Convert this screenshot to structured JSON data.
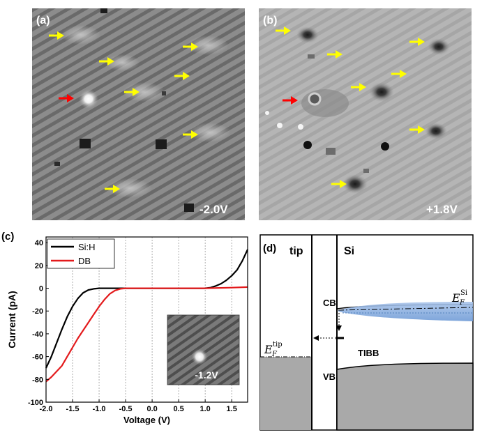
{
  "figure": {
    "panel_a": {
      "label": "(a)",
      "bias": "-2.0V"
    },
    "panel_b": {
      "label": "(b)",
      "bias": "+1.8V"
    },
    "panel_c": {
      "label": "(c)",
      "inset_bias": "-1.2V"
    },
    "panel_d": {
      "label": "(d)",
      "tip_label": "tip",
      "si_label": "Si",
      "cb_label": "CB",
      "vb_label": "VB",
      "tibb_label": "TIBB",
      "ef_tip_main": "E",
      "ef_tip_sub": "F",
      "ef_tip_sup": "tip",
      "ef_si_main": "E",
      "ef_si_sub": "F",
      "ef_si_sup": "Si"
    },
    "colors": {
      "arrow_yellow": "#ffff00",
      "arrow_red": "#ff0000",
      "series_sih": "#000000",
      "series_db": "#e31a1c",
      "band_fill": "#7fa7d8",
      "gray_fill": "#a9a9a9"
    }
  },
  "chart_data": {
    "type": "line",
    "title": "",
    "xlabel": "Voltage (V)",
    "ylabel": "Current (pA)",
    "xlim": [
      -2.0,
      1.8
    ],
    "ylim": [
      -100,
      45
    ],
    "x_ticks": [
      "-2.0",
      "-1.5",
      "-1.0",
      "-0.5",
      "0.0",
      "0.5",
      "1.0",
      "1.5"
    ],
    "x_tick_values": [
      -2.0,
      -1.5,
      -1.0,
      -0.5,
      0.0,
      0.5,
      1.0,
      1.5
    ],
    "y_ticks": [
      "-100",
      "-80",
      "-60",
      "-40",
      "-20",
      "0",
      "20",
      "40"
    ],
    "y_tick_values": [
      -100,
      -80,
      -60,
      -40,
      -20,
      0,
      20,
      40
    ],
    "grid": "vertical dotted",
    "legend": "top-left",
    "series": [
      {
        "name": "Si:H",
        "color": "#000000",
        "x": [
          -2.0,
          -1.9,
          -1.8,
          -1.7,
          -1.6,
          -1.5,
          -1.4,
          -1.3,
          -1.2,
          -1.1,
          -1.0,
          -0.9,
          -0.5,
          0.0,
          0.5,
          1.0,
          1.1,
          1.2,
          1.3,
          1.4,
          1.5,
          1.6,
          1.7,
          1.8
        ],
        "y": [
          -70,
          -60,
          -48,
          -36,
          -25,
          -16,
          -9,
          -4,
          -1.5,
          -0.5,
          0,
          0,
          0,
          0,
          0,
          0,
          0.5,
          2,
          4,
          7,
          11,
          16,
          24,
          34
        ]
      },
      {
        "name": "DB",
        "color": "#e31a1c",
        "x": [
          -2.0,
          -1.9,
          -1.8,
          -1.7,
          -1.6,
          -1.5,
          -1.4,
          -1.3,
          -1.2,
          -1.1,
          -1.0,
          -0.9,
          -0.8,
          -0.7,
          -0.6,
          -0.5,
          0.0,
          0.5,
          1.0,
          1.5,
          1.8
        ],
        "y": [
          -82,
          -78,
          -73,
          -68,
          -60,
          -52,
          -44,
          -37,
          -30,
          -23,
          -16,
          -10,
          -5,
          -2,
          -0.5,
          0,
          0,
          0,
          0,
          0.5,
          1
        ]
      }
    ]
  }
}
